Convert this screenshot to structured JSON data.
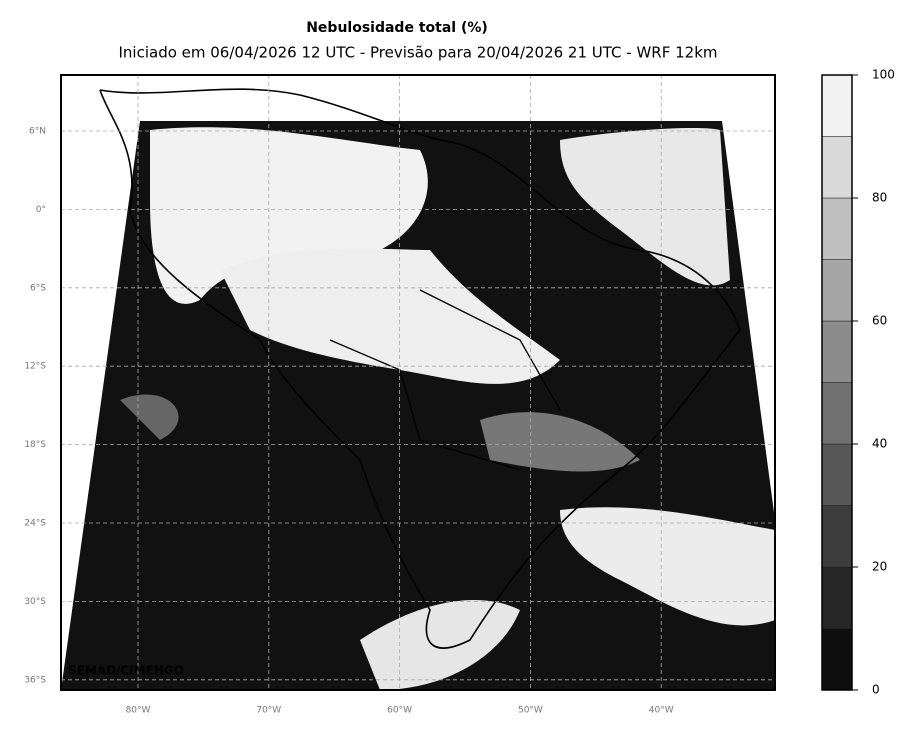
{
  "title": "Nebulosidade total (%)",
  "subtitle": "Iniciado em 06/04/2026 12 UTC - Previsão para 20/04/2026 21 UTC - WRF 12km",
  "map": {
    "lat_labels": [
      "6°N",
      "0°",
      "6°S",
      "12°S",
      "18°S",
      "24°S",
      "30°S",
      "36°S"
    ],
    "lon_labels": [
      "80°W",
      "70°W",
      "60°W",
      "50°W",
      "40°W"
    ],
    "credit": "SEMAD/CIMEHGO"
  },
  "colorbar": {
    "ticks": [
      0,
      20,
      40,
      60,
      80,
      100
    ],
    "colors": [
      "#0f0f0f",
      "#262626",
      "#3d3d3d",
      "#575757",
      "#717171",
      "#8c8c8c",
      "#a6a6a6",
      "#bfbfbf",
      "#d9d9d9",
      "#f2f2f2"
    ]
  }
}
